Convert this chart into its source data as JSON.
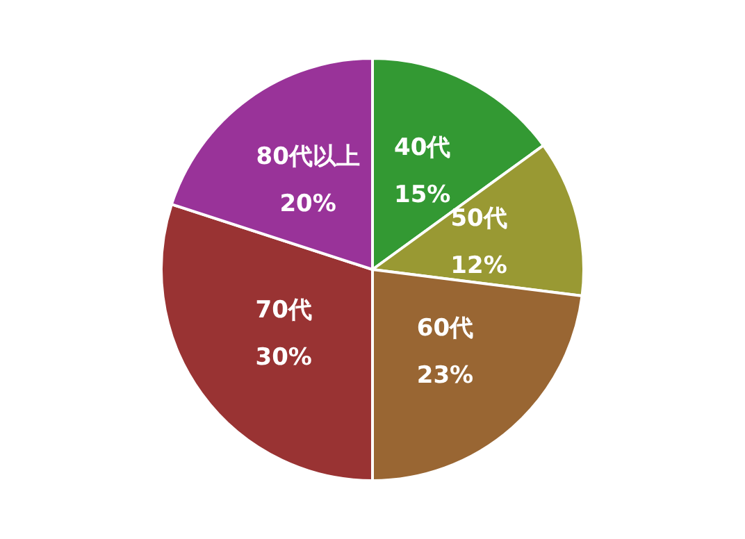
{
  "chart_data": {
    "type": "pie",
    "categories": [
      "40代",
      "50代",
      "60代",
      "70代",
      "80代以上"
    ],
    "values": [
      15,
      12,
      23,
      30,
      20
    ],
    "value_labels": [
      "15%",
      "12%",
      "23%",
      "30%",
      "20%"
    ],
    "colors": [
      "#339933",
      "#999933",
      "#996633",
      "#993333",
      "#993399"
    ],
    "legend": false
  }
}
